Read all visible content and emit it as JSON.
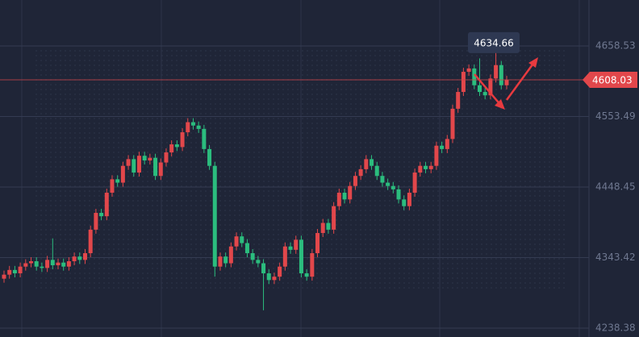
{
  "chart_data": {
    "type": "candlestick",
    "up_color": "#e2474b",
    "down_color": "#2bbd7e",
    "grid": true,
    "ylim": [
      4225.2,
      4726.9
    ],
    "yticks": [
      4658.53,
      4553.49,
      4448.45,
      4343.42,
      4238.38
    ],
    "last_price": 4608.03,
    "annotation": 4634.66,
    "open": [
      4312,
      4318,
      4325,
      4320,
      4330,
      4335,
      4338,
      4330,
      4328,
      4340,
      4332,
      4336,
      4330,
      4338,
      4345,
      4340,
      4350,
      4385,
      4410,
      4405,
      4440,
      4460,
      4455,
      4480,
      4490,
      4470,
      4495,
      4488,
      4492,
      4465,
      4485,
      4500,
      4512,
      4508,
      4530,
      4545,
      4540,
      4535,
      4505,
      4480,
      4330,
      4345,
      4335,
      4360,
      4375,
      4365,
      4350,
      4340,
      4335,
      4320,
      4310,
      4315,
      4330,
      4360,
      4355,
      4370,
      4320,
      4315,
      4350,
      4380,
      4395,
      4385,
      4420,
      4440,
      4430,
      4450,
      4465,
      4475,
      4490,
      4480,
      4465,
      4455,
      4450,
      4445,
      4430,
      4420,
      4440,
      4470,
      4480,
      4475,
      4480,
      4510,
      4505,
      4520,
      4565,
      4590,
      4620,
      4625,
      4600,
      4590,
      4585,
      4610,
      4630,
      4600
    ],
    "high": [
      4324,
      4331,
      4331,
      4336,
      4341,
      4344,
      4344,
      4336,
      4346,
      4372,
      4342,
      4342,
      4344,
      4351,
      4351,
      4356,
      4391,
      4416,
      4416,
      4446,
      4466,
      4466,
      4486,
      4496,
      4496,
      4501,
      4501,
      4498,
      4498,
      4491,
      4506,
      4518,
      4518,
      4536,
      4551,
      4551,
      4546,
      4541,
      4511,
      4486,
      4351,
      4351,
      4366,
      4381,
      4381,
      4371,
      4356,
      4346,
      4341,
      4326,
      4321,
      4336,
      4366,
      4366,
      4376,
      4376,
      4326,
      4356,
      4386,
      4401,
      4401,
      4426,
      4446,
      4446,
      4456,
      4471,
      4481,
      4496,
      4496,
      4486,
      4471,
      4461,
      4456,
      4451,
      4436,
      4446,
      4476,
      4486,
      4486,
      4486,
      4516,
      4516,
      4526,
      4571,
      4596,
      4626,
      4631,
      4631,
      4640,
      4596,
      4616,
      4650,
      4636,
      4614
    ],
    "low": [
      4306,
      4312,
      4314,
      4314,
      4324,
      4329,
      4324,
      4322,
      4322,
      4326,
      4326,
      4324,
      4324,
      4332,
      4334,
      4334,
      4344,
      4379,
      4399,
      4399,
      4434,
      4449,
      4449,
      4474,
      4464,
      4464,
      4482,
      4482,
      4459,
      4459,
      4479,
      4494,
      4502,
      4502,
      4524,
      4534,
      4529,
      4499,
      4474,
      4315,
      4324,
      4329,
      4329,
      4354,
      4359,
      4344,
      4334,
      4329,
      4265,
      4304,
      4304,
      4309,
      4324,
      4349,
      4349,
      4314,
      4309,
      4309,
      4344,
      4374,
      4379,
      4379,
      4414,
      4424,
      4424,
      4444,
      4459,
      4469,
      4474,
      4459,
      4449,
      4444,
      4439,
      4424,
      4414,
      4414,
      4434,
      4464,
      4469,
      4469,
      4474,
      4499,
      4499,
      4514,
      4559,
      4584,
      4614,
      4594,
      4584,
      4579,
      4579,
      4604,
      4594,
      4594
    ],
    "close": [
      4318,
      4325,
      4320,
      4330,
      4335,
      4338,
      4330,
      4328,
      4340,
      4332,
      4336,
      4330,
      4338,
      4345,
      4340,
      4350,
      4385,
      4410,
      4405,
      4440,
      4460,
      4455,
      4480,
      4490,
      4470,
      4495,
      4488,
      4492,
      4465,
      4485,
      4500,
      4512,
      4508,
      4530,
      4545,
      4540,
      4535,
      4505,
      4480,
      4330,
      4345,
      4335,
      4360,
      4375,
      4365,
      4350,
      4340,
      4335,
      4320,
      4310,
      4315,
      4330,
      4360,
      4355,
      4370,
      4320,
      4315,
      4350,
      4380,
      4395,
      4385,
      4420,
      4440,
      4430,
      4450,
      4465,
      4475,
      4490,
      4480,
      4465,
      4455,
      4450,
      4445,
      4430,
      4420,
      4440,
      4470,
      4480,
      4475,
      4480,
      4510,
      4505,
      4520,
      4565,
      4590,
      4620,
      4625,
      4600,
      4590,
      4585,
      4610,
      4630,
      4600,
      4608.03
    ]
  }
}
